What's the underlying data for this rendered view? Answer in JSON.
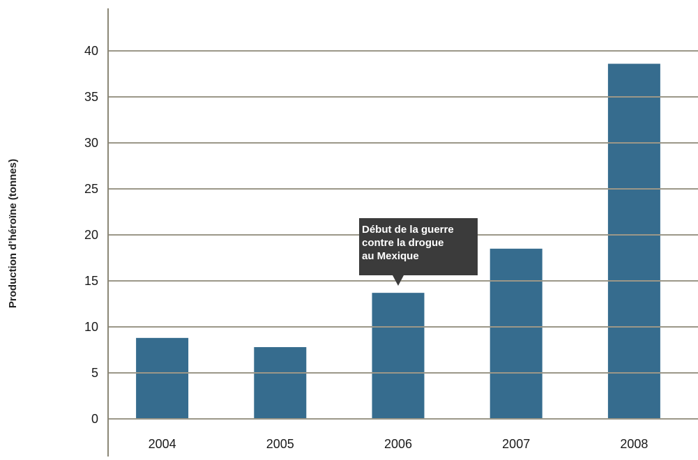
{
  "chart_data": {
    "type": "bar",
    "categories": [
      "2004",
      "2005",
      "2006",
      "2007",
      "2008"
    ],
    "values": [
      8.8,
      7.8,
      13.7,
      18.5,
      38.6
    ],
    "title": "",
    "xlabel": "",
    "ylabel": "Production d’héroïne (tonnes)",
    "ylim": [
      0,
      44
    ],
    "yticks": [
      0,
      5,
      10,
      15,
      20,
      25,
      30,
      35,
      40
    ],
    "grid": true,
    "legend": "none",
    "annotation": {
      "category": "2006",
      "lines": [
        "Début de la guerre",
        "contre la drogue",
        "au Mexique"
      ]
    },
    "colors": {
      "bar": "#366c8e",
      "grid": "#9b9788",
      "axis": "#8a8676",
      "annotation_bg": "#3b3b3b",
      "annotation_text": "#ffffff"
    }
  }
}
